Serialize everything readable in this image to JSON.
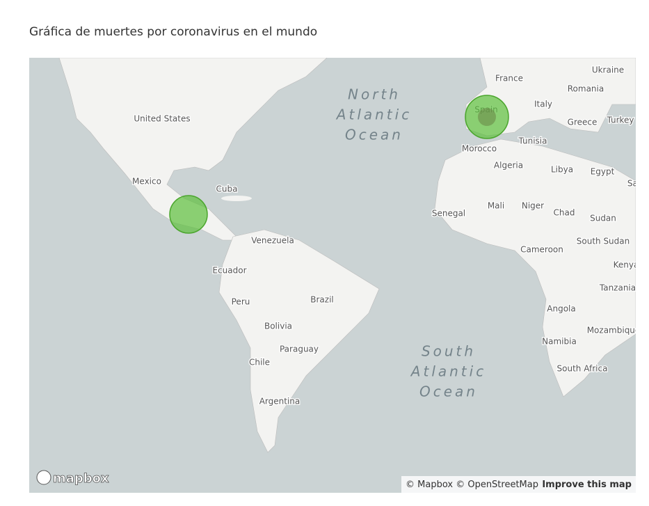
{
  "title": "Gráfica de muertes por coronavirus en el mundo",
  "map": {
    "oceans": [
      [
        "North",
        "Atlantic",
        "Ocean"
      ],
      [
        "South",
        "Atlantic",
        "Ocean"
      ]
    ],
    "places": [
      "United States",
      "Mexico",
      "Cuba",
      "Venezuela",
      "Ecuador",
      "Peru",
      "Brazil",
      "Bolivia",
      "Paraguay",
      "Chile",
      "Argentina",
      "France",
      "Ukraine",
      "Romania",
      "Italy",
      "Spain",
      "Greece",
      "Turkey",
      "Morocco",
      "Tunisia",
      "Algeria",
      "Libya",
      "Egypt",
      "Saudi Arabia",
      "Senegal",
      "Mali",
      "Niger",
      "Chad",
      "Sudan",
      "South Sudan",
      "Cameroon",
      "Kenya",
      "Tanzania",
      "Angola",
      "Mozambique",
      "Namibia",
      "South Africa"
    ],
    "logo": "mapbox",
    "attribution": [
      "© Mapbox © OpenStreetMap",
      "Improve this map"
    ]
  }
}
